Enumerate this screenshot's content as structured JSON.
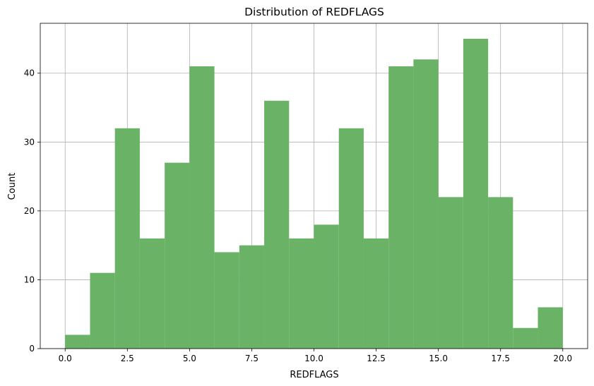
{
  "chart_data": {
    "type": "bar",
    "title": "Distribution of REDFLAGS",
    "xlabel": "REDFLAGS",
    "ylabel": "Count",
    "bins": [
      {
        "start": 0,
        "end": 1,
        "count": 2
      },
      {
        "start": 1,
        "end": 2,
        "count": 11
      },
      {
        "start": 2,
        "end": 3,
        "count": 32
      },
      {
        "start": 3,
        "end": 4,
        "count": 16
      },
      {
        "start": 4,
        "end": 5,
        "count": 27
      },
      {
        "start": 5,
        "end": 6,
        "count": 41
      },
      {
        "start": 6,
        "end": 7,
        "count": 14
      },
      {
        "start": 7,
        "end": 8,
        "count": 15
      },
      {
        "start": 8,
        "end": 9,
        "count": 36
      },
      {
        "start": 9,
        "end": 10,
        "count": 16
      },
      {
        "start": 10,
        "end": 11,
        "count": 18
      },
      {
        "start": 11,
        "end": 12,
        "count": 32
      },
      {
        "start": 12,
        "end": 13,
        "count": 16
      },
      {
        "start": 13,
        "end": 14,
        "count": 41
      },
      {
        "start": 14,
        "end": 15,
        "count": 42
      },
      {
        "start": 15,
        "end": 16,
        "count": 22
      },
      {
        "start": 16,
        "end": 17,
        "count": 45
      },
      {
        "start": 17,
        "end": 18,
        "count": 22
      },
      {
        "start": 18,
        "end": 19,
        "count": 3
      },
      {
        "start": 19,
        "end": 20,
        "count": 6
      }
    ],
    "xlim": [
      -1,
      21
    ],
    "ylim": [
      0,
      47.25
    ],
    "xticks": [
      0,
      2.5,
      5,
      7.5,
      10,
      12.5,
      15,
      17.5,
      20
    ],
    "xtick_labels": [
      "0.0",
      "2.5",
      "5.0",
      "7.5",
      "10.0",
      "12.5",
      "15.0",
      "17.5",
      "20.0"
    ],
    "yticks": [
      0,
      10,
      20,
      30,
      40
    ],
    "ytick_labels": [
      "0",
      "10",
      "20",
      "30",
      "40"
    ],
    "grid": true,
    "bar_color": "#69b266",
    "grid_color": "#b0b0b0"
  }
}
